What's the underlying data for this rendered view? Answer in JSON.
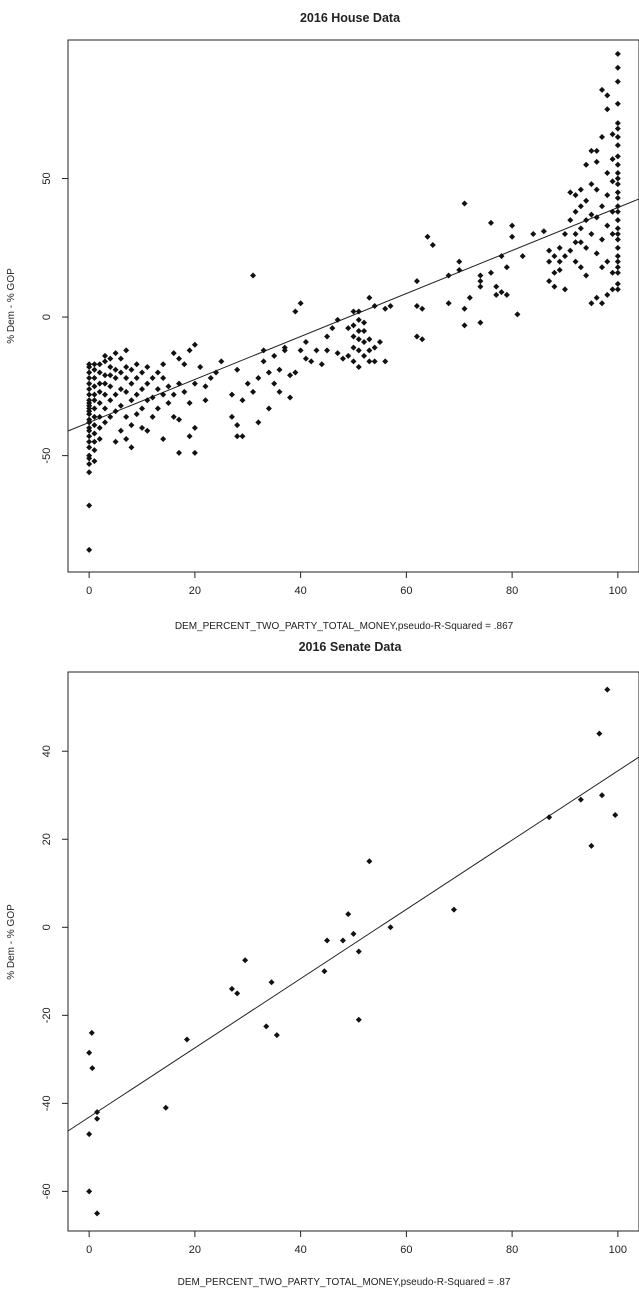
{
  "chart_data": [
    {
      "type": "scatter",
      "title": "2016 House Data",
      "xlabel": "DEM_PERCENT_TWO_PARTY_TOTAL_MONEY,pseudo-R-Squared = .867",
      "ylabel": "% Dem - % GOP",
      "xlim": [
        -4,
        104
      ],
      "ylim": [
        -92,
        100
      ],
      "x_ticks": [
        "0",
        "20",
        "40",
        "60",
        "80",
        "100"
      ],
      "y_ticks": [
        "-50",
        "0",
        "50"
      ],
      "grid": false,
      "fit_line": {
        "x": [
          -4,
          104
        ],
        "y": [
          -41,
          43
        ]
      },
      "points": [
        [
          0,
          -84
        ],
        [
          0,
          -68
        ],
        [
          0,
          -56
        ],
        [
          0,
          -53
        ],
        [
          0,
          -51
        ],
        [
          0,
          -50
        ],
        [
          0,
          -47
        ],
        [
          0,
          -45
        ],
        [
          0,
          -43
        ],
        [
          0,
          -41
        ],
        [
          0,
          -40
        ],
        [
          0,
          -38
        ],
        [
          0,
          -37
        ],
        [
          0,
          -35
        ],
        [
          0,
          -34
        ],
        [
          0,
          -33
        ],
        [
          0,
          -32
        ],
        [
          0,
          -31
        ],
        [
          0,
          -30
        ],
        [
          0,
          -28
        ],
        [
          0,
          -26
        ],
        [
          0,
          -24
        ],
        [
          0,
          -22
        ],
        [
          0,
          -20
        ],
        [
          0,
          -18
        ],
        [
          0,
          -17
        ],
        [
          1,
          -52
        ],
        [
          1,
          -48
        ],
        [
          1,
          -45
        ],
        [
          1,
          -42
        ],
        [
          1,
          -39
        ],
        [
          1,
          -36
        ],
        [
          1,
          -33
        ],
        [
          1,
          -30
        ],
        [
          1,
          -28
        ],
        [
          1,
          -25
        ],
        [
          1,
          -22
        ],
        [
          1,
          -19
        ],
        [
          1,
          -17
        ],
        [
          2,
          -44
        ],
        [
          2,
          -40
        ],
        [
          2,
          -36
        ],
        [
          2,
          -31
        ],
        [
          2,
          -27
        ],
        [
          2,
          -24
        ],
        [
          2,
          -20
        ],
        [
          2,
          -17
        ],
        [
          3,
          -38
        ],
        [
          3,
          -33
        ],
        [
          3,
          -28
        ],
        [
          3,
          -24
        ],
        [
          3,
          -21
        ],
        [
          3,
          -16
        ],
        [
          3,
          -14
        ],
        [
          4,
          -36
        ],
        [
          4,
          -30
        ],
        [
          4,
          -25
        ],
        [
          4,
          -21
        ],
        [
          4,
          -18
        ],
        [
          4,
          -15
        ],
        [
          5,
          -45
        ],
        [
          5,
          -34
        ],
        [
          5,
          -28
        ],
        [
          5,
          -22
        ],
        [
          5,
          -19
        ],
        [
          5,
          -13
        ],
        [
          6,
          -41
        ],
        [
          6,
          -32
        ],
        [
          6,
          -26
        ],
        [
          6,
          -20
        ],
        [
          6,
          -15
        ],
        [
          7,
          -44
        ],
        [
          7,
          -36
        ],
        [
          7,
          -27
        ],
        [
          7,
          -22
        ],
        [
          7,
          -18
        ],
        [
          7,
          -12
        ],
        [
          8,
          -47
        ],
        [
          8,
          -39
        ],
        [
          8,
          -30
        ],
        [
          8,
          -24
        ],
        [
          8,
          -19
        ],
        [
          9,
          -35
        ],
        [
          9,
          -28
        ],
        [
          9,
          -22
        ],
        [
          9,
          -17
        ],
        [
          10,
          -40
        ],
        [
          10,
          -33
        ],
        [
          10,
          -26
        ],
        [
          10,
          -20
        ],
        [
          11,
          -41
        ],
        [
          11,
          -30
        ],
        [
          11,
          -24
        ],
        [
          11,
          -18
        ],
        [
          12,
          -36
        ],
        [
          12,
          -29
        ],
        [
          12,
          -22
        ],
        [
          13,
          -33
        ],
        [
          13,
          -26
        ],
        [
          13,
          -20
        ],
        [
          14,
          -44
        ],
        [
          14,
          -28
        ],
        [
          14,
          -22
        ],
        [
          14,
          -17
        ],
        [
          15,
          -31
        ],
        [
          15,
          -25
        ],
        [
          16,
          -36
        ],
        [
          16,
          -28
        ],
        [
          16,
          -13
        ],
        [
          17,
          -49
        ],
        [
          17,
          -37
        ],
        [
          17,
          -24
        ],
        [
          17,
          -15
        ],
        [
          18,
          -27
        ],
        [
          18,
          -17
        ],
        [
          19,
          -43
        ],
        [
          19,
          -31
        ],
        [
          19,
          -12
        ],
        [
          20,
          -49
        ],
        [
          20,
          -40
        ],
        [
          20,
          -24
        ],
        [
          20,
          -10
        ],
        [
          21,
          -18
        ],
        [
          22,
          -30
        ],
        [
          22,
          -25
        ],
        [
          23,
          -22
        ],
        [
          24,
          -20
        ],
        [
          25,
          -16
        ],
        [
          27,
          -36
        ],
        [
          27,
          -28
        ],
        [
          28,
          -43
        ],
        [
          28,
          -39
        ],
        [
          28,
          -19
        ],
        [
          29,
          -43
        ],
        [
          29,
          -30
        ],
        [
          30,
          -24
        ],
        [
          31,
          15
        ],
        [
          31,
          -27
        ],
        [
          32,
          -38
        ],
        [
          32,
          -22
        ],
        [
          33,
          -12
        ],
        [
          33,
          -16
        ],
        [
          34,
          -33
        ],
        [
          34,
          -20
        ],
        [
          35,
          -24
        ],
        [
          35,
          -14
        ],
        [
          36,
          -27
        ],
        [
          36,
          -19
        ],
        [
          37,
          -11
        ],
        [
          37,
          -12
        ],
        [
          38,
          -29
        ],
        [
          38,
          -21
        ],
        [
          39,
          2
        ],
        [
          39,
          -20
        ],
        [
          40,
          5
        ],
        [
          40,
          -12
        ],
        [
          41,
          -15
        ],
        [
          41,
          -9
        ],
        [
          42,
          -16
        ],
        [
          43,
          -12
        ],
        [
          44,
          -17
        ],
        [
          45,
          -7
        ],
        [
          45,
          -12
        ],
        [
          46,
          -4
        ],
        [
          47,
          -13
        ],
        [
          47,
          -1
        ],
        [
          48,
          -15
        ],
        [
          49,
          -4
        ],
        [
          49,
          -14
        ],
        [
          50,
          -16
        ],
        [
          50,
          -11
        ],
        [
          50,
          -7
        ],
        [
          50,
          -3
        ],
        [
          50,
          2
        ],
        [
          51,
          -18
        ],
        [
          51,
          -12
        ],
        [
          51,
          -8
        ],
        [
          51,
          -5
        ],
        [
          51,
          -1
        ],
        [
          51,
          2
        ],
        [
          52,
          -14
        ],
        [
          52,
          -9
        ],
        [
          52,
          -5
        ],
        [
          52,
          -2
        ],
        [
          53,
          7
        ],
        [
          53,
          -8
        ],
        [
          53,
          -12
        ],
        [
          53,
          -16
        ],
        [
          54,
          4
        ],
        [
          54,
          -11
        ],
        [
          54,
          -16
        ],
        [
          55,
          -9
        ],
        [
          56,
          -16
        ],
        [
          56,
          3
        ],
        [
          57,
          4
        ],
        [
          62,
          -7
        ],
        [
          62,
          4
        ],
        [
          62,
          13
        ],
        [
          63,
          -8
        ],
        [
          63,
          3
        ],
        [
          64,
          29
        ],
        [
          65,
          26
        ],
        [
          68,
          15
        ],
        [
          68,
          5
        ],
        [
          70,
          17
        ],
        [
          70,
          20
        ],
        [
          71,
          -3
        ],
        [
          71,
          3
        ],
        [
          71,
          41
        ],
        [
          72,
          7
        ],
        [
          74,
          11
        ],
        [
          74,
          13
        ],
        [
          74,
          -2
        ],
        [
          74,
          15
        ],
        [
          76,
          16
        ],
        [
          76,
          34
        ],
        [
          77,
          8
        ],
        [
          77,
          11
        ],
        [
          78,
          9
        ],
        [
          78,
          22
        ],
        [
          79,
          18
        ],
        [
          79,
          8
        ],
        [
          80,
          33
        ],
        [
          80,
          29
        ],
        [
          81,
          1
        ],
        [
          82,
          22
        ],
        [
          84,
          30
        ],
        [
          86,
          31
        ],
        [
          87,
          20
        ],
        [
          87,
          24
        ],
        [
          87,
          13
        ],
        [
          88,
          16
        ],
        [
          88,
          22
        ],
        [
          88,
          11
        ],
        [
          89,
          20
        ],
        [
          89,
          25
        ],
        [
          89,
          17
        ],
        [
          90,
          30
        ],
        [
          90,
          22
        ],
        [
          90,
          10
        ],
        [
          91,
          45
        ],
        [
          91,
          35
        ],
        [
          91,
          24
        ],
        [
          92,
          30
        ],
        [
          92,
          38
        ],
        [
          92,
          44
        ],
        [
          92,
          20
        ],
        [
          92,
          27
        ],
        [
          93,
          27
        ],
        [
          93,
          32
        ],
        [
          93,
          46
        ],
        [
          93,
          18
        ],
        [
          93,
          40
        ],
        [
          94,
          42
        ],
        [
          94,
          55
        ],
        [
          94,
          35
        ],
        [
          94,
          25
        ],
        [
          94,
          15
        ],
        [
          95,
          60
        ],
        [
          95,
          48
        ],
        [
          95,
          30
        ],
        [
          95,
          37
        ],
        [
          95,
          5
        ],
        [
          96,
          46
        ],
        [
          96,
          56
        ],
        [
          96,
          36
        ],
        [
          96,
          23
        ],
        [
          96,
          7
        ],
        [
          96,
          60
        ],
        [
          97,
          82
        ],
        [
          97,
          65
        ],
        [
          97,
          40
        ],
        [
          97,
          28
        ],
        [
          97,
          18
        ],
        [
          97,
          5
        ],
        [
          98,
          75
        ],
        [
          98,
          52
        ],
        [
          98,
          44
        ],
        [
          98,
          33
        ],
        [
          98,
          20
        ],
        [
          98,
          8
        ],
        [
          98,
          80
        ],
        [
          99,
          49
        ],
        [
          99,
          66
        ],
        [
          99,
          38
        ],
        [
          99,
          30
        ],
        [
          99,
          16
        ],
        [
          99,
          10
        ],
        [
          99,
          57
        ],
        [
          100,
          95
        ],
        [
          100,
          90
        ],
        [
          100,
          85
        ],
        [
          100,
          77
        ],
        [
          100,
          70
        ],
        [
          100,
          68
        ],
        [
          100,
          65
        ],
        [
          100,
          62
        ],
        [
          100,
          58
        ],
        [
          100,
          55
        ],
        [
          100,
          52
        ],
        [
          100,
          50
        ],
        [
          100,
          48
        ],
        [
          100,
          45
        ],
        [
          100,
          43
        ],
        [
          100,
          40
        ],
        [
          100,
          38
        ],
        [
          100,
          35
        ],
        [
          100,
          32
        ],
        [
          100,
          30
        ],
        [
          100,
          28
        ],
        [
          100,
          25
        ],
        [
          100,
          22
        ],
        [
          100,
          20
        ],
        [
          100,
          18
        ],
        [
          100,
          16
        ],
        [
          100,
          12
        ],
        [
          100,
          10
        ]
      ]
    },
    {
      "type": "scatter",
      "title": "2016 Senate Data",
      "xlabel": "DEM_PERCENT_TWO_PARTY_TOTAL_MONEY,pseudo-R-Squared = .87",
      "ylabel": "% Dem - % GOP",
      "xlim": [
        -4,
        104
      ],
      "ylim": [
        -69,
        58
      ],
      "x_ticks": [
        "0",
        "20",
        "40",
        "60",
        "80",
        "100"
      ],
      "y_ticks": [
        "-60",
        "-40",
        "-20",
        "0",
        "20",
        "40"
      ],
      "grid": false,
      "fit_line": {
        "x": [
          -4,
          104
        ],
        "y": [
          -46,
          38
        ]
      },
      "points": [
        [
          0,
          -47
        ],
        [
          0,
          -60
        ],
        [
          0,
          -28.5
        ],
        [
          0.5,
          -24
        ],
        [
          0.6,
          -32
        ],
        [
          1.5,
          -42
        ],
        [
          1.5,
          -43.5
        ],
        [
          1.5,
          -65
        ],
        [
          14.5,
          -41
        ],
        [
          18.5,
          -25.5
        ],
        [
          27,
          -14
        ],
        [
          28,
          -15
        ],
        [
          29.5,
          -7.5
        ],
        [
          33.5,
          -22.5
        ],
        [
          34.5,
          -12.5
        ],
        [
          35.5,
          -24.5
        ],
        [
          44.5,
          -10
        ],
        [
          45,
          -3
        ],
        [
          48,
          -3
        ],
        [
          49,
          3
        ],
        [
          50,
          -1.5
        ],
        [
          51,
          -5.5
        ],
        [
          51,
          -21
        ],
        [
          53,
          15
        ],
        [
          57,
          0
        ],
        [
          69,
          4
        ],
        [
          87,
          25
        ],
        [
          93,
          29
        ],
        [
          95,
          18.5
        ],
        [
          96.5,
          44
        ],
        [
          97,
          30
        ],
        [
          98,
          54
        ],
        [
          99.5,
          25.5
        ]
      ]
    }
  ]
}
